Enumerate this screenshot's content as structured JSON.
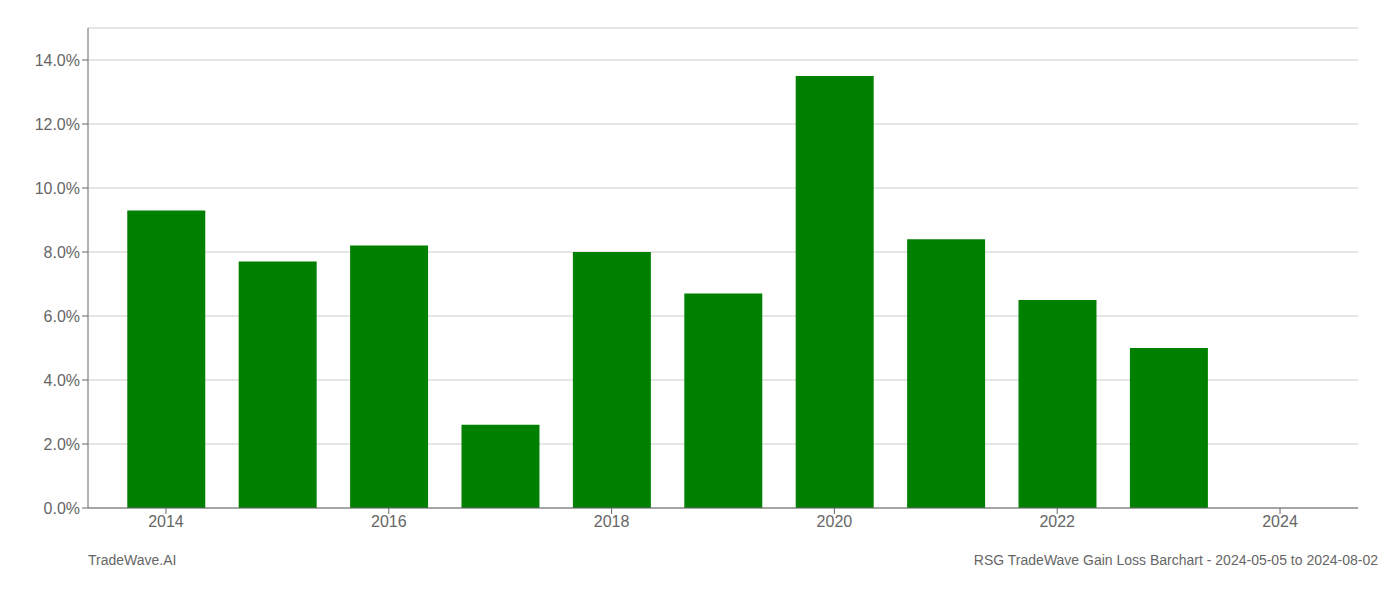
{
  "chart_data": {
    "type": "bar",
    "x": [
      2014,
      2015,
      2016,
      2017,
      2018,
      2019,
      2020,
      2021,
      2022,
      2023
    ],
    "values": [
      0.093,
      0.077,
      0.082,
      0.026,
      0.08,
      0.067,
      0.135,
      0.084,
      0.065,
      0.05
    ],
    "color": "#008000",
    "xlim": [
      2013.3,
      2024.7
    ],
    "xticks": [
      2014,
      2016,
      2018,
      2020,
      2022,
      2024
    ],
    "ylim": [
      0,
      0.15
    ],
    "yticks": [
      {
        "value": 0.0,
        "label": "0.0%"
      },
      {
        "value": 0.02,
        "label": "2.0%"
      },
      {
        "value": 0.04,
        "label": "4.0%"
      },
      {
        "value": 0.06,
        "label": "6.0%"
      },
      {
        "value": 0.08,
        "label": "8.0%"
      },
      {
        "value": 0.1,
        "label": "10.0%"
      },
      {
        "value": 0.12,
        "label": "12.0%"
      },
      {
        "value": 0.14,
        "label": "14.0%"
      }
    ],
    "grid": true,
    "annotations": [
      "TradeWave.AI",
      "RSG TradeWave Gain Loss Barchart - 2024-05-05 to 2024-08-02"
    ]
  }
}
